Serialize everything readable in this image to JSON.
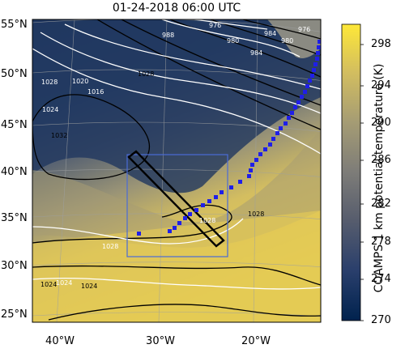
{
  "title": "01-24-2018 06:00 UTC",
  "lat_labels": [
    "55°N",
    "50°N",
    "45°N",
    "40°N",
    "35°N",
    "30°N",
    "25°N"
  ],
  "lon_labels": [
    "40°W",
    "30°W",
    "20°W"
  ],
  "colorbar": {
    "label": "COAMPS 1 km potential temperature (K)",
    "ticks": [
      "298",
      "294",
      "290",
      "286",
      "282",
      "278",
      "274",
      "270"
    ],
    "colors": [
      "#00224e",
      "#2a3f6c",
      "#575d6d",
      "#7d7c78",
      "#a59c74",
      "#d3be5f",
      "#fee838"
    ]
  },
  "contours": {
    "white_labels": [
      "1028",
      "1024",
      "1020",
      "1016",
      "1028",
      "1028",
      "1024"
    ],
    "black_labels": [
      "1032",
      "1028",
      "1024",
      "1028",
      "1024"
    ],
    "low_labels": [
      "980",
      "984",
      "988",
      "976",
      "980",
      "976",
      "984"
    ]
  },
  "markers": {
    "color": "#1f1fe8"
  },
  "overlays": {
    "box_color": "#4a6bd6"
  }
}
